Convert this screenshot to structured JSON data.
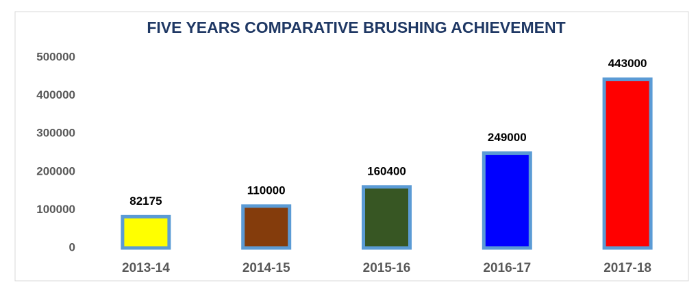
{
  "chart_data": {
    "type": "bar",
    "title": "FIVE YEARS COMPARATIVE BRUSHING ACHIEVEMENT",
    "categories": [
      "2013-14",
      "2014-15",
      "2015-16",
      "2016-17",
      "2017-18"
    ],
    "values": [
      82175,
      110000,
      160400,
      249000,
      443000
    ],
    "colors": [
      "#ffff00",
      "#843c0c",
      "#375623",
      "#0000ff",
      "#ff0000"
    ],
    "edge_color": "#5b9bd5",
    "ylim": [
      0,
      500000
    ],
    "yticks": [
      0,
      100000,
      200000,
      300000,
      400000,
      500000
    ],
    "grid": false
  }
}
